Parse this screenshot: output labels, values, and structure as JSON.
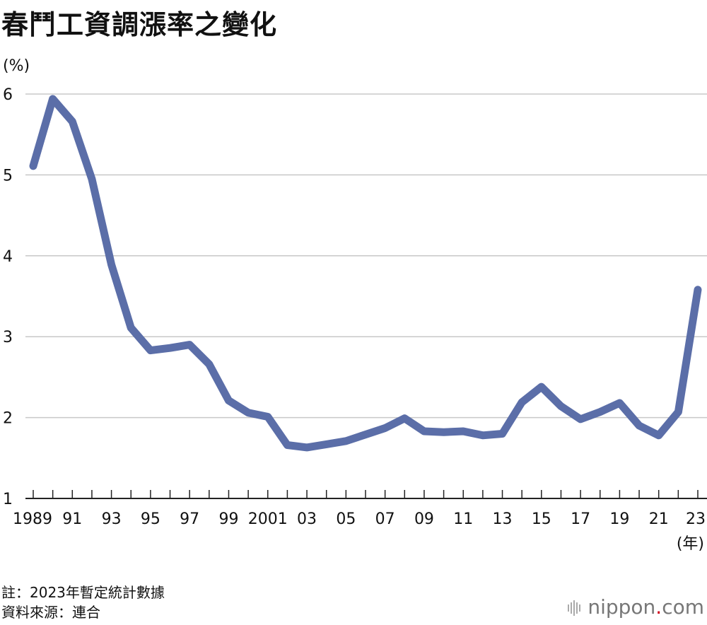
{
  "title": "春鬥工資調漲率之變化",
  "note": "註：2023年暫定統計數據",
  "source": "資料來源：連合",
  "brand": {
    "name": "nippon",
    "dot": ".",
    "suffix": "com"
  },
  "chart_data": {
    "type": "line",
    "title": "春鬥工資調漲率之變化",
    "ylabel": "(%)",
    "xlabel": "(年)",
    "ylim": [
      1,
      6
    ],
    "yticks": [
      1,
      2,
      3,
      4,
      5,
      6
    ],
    "grid": true,
    "x": [
      1989,
      1990,
      1991,
      1992,
      1993,
      1994,
      1995,
      1996,
      1997,
      1998,
      1999,
      2000,
      2001,
      2002,
      2003,
      2004,
      2005,
      2006,
      2007,
      2008,
      2009,
      2010,
      2011,
      2012,
      2013,
      2014,
      2015,
      2016,
      2017,
      2018,
      2019,
      2020,
      2021,
      2022,
      2023
    ],
    "xtick_labels": [
      "1989",
      "91",
      "93",
      "95",
      "97",
      "99",
      "2001",
      "03",
      "05",
      "07",
      "09",
      "11",
      "13",
      "15",
      "17",
      "19",
      "21",
      "23"
    ],
    "xtick_years": [
      1989,
      1991,
      1993,
      1995,
      1997,
      1999,
      2001,
      2003,
      2005,
      2007,
      2009,
      2011,
      2013,
      2015,
      2017,
      2019,
      2021,
      2023
    ],
    "series": [
      {
        "color": "#5b6ea8",
        "values": [
          5.11,
          5.94,
          5.66,
          4.95,
          3.89,
          3.11,
          2.83,
          2.86,
          2.9,
          2.66,
          2.21,
          2.06,
          2.01,
          1.66,
          1.63,
          1.67,
          1.71,
          1.79,
          1.87,
          1.99,
          1.83,
          1.82,
          1.83,
          1.78,
          1.8,
          2.19,
          2.38,
          2.14,
          1.98,
          2.07,
          2.18,
          1.9,
          1.78,
          2.07,
          3.58
        ]
      }
    ]
  }
}
